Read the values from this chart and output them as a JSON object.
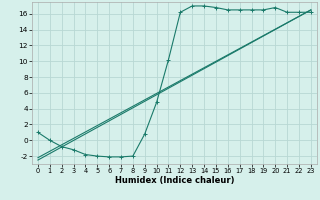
{
  "title": "",
  "xlabel": "Humidex (Indice chaleur)",
  "bg_color": "#d6f0eb",
  "line_color": "#1a7a6a",
  "grid_color": "#b8d8d4",
  "xlim": [
    -0.5,
    23.5
  ],
  "ylim": [
    -3.0,
    17.5
  ],
  "xticks": [
    0,
    1,
    2,
    3,
    4,
    5,
    6,
    7,
    8,
    9,
    10,
    11,
    12,
    13,
    14,
    15,
    16,
    17,
    18,
    19,
    20,
    21,
    22,
    23
  ],
  "yticks": [
    -2,
    0,
    2,
    4,
    6,
    8,
    10,
    12,
    14,
    16
  ],
  "line1_x": [
    0,
    1,
    2,
    3,
    4,
    5,
    6,
    7,
    8,
    9,
    10,
    11,
    12,
    13,
    14,
    15,
    16,
    17,
    18,
    19,
    20,
    21,
    22,
    23
  ],
  "line1_y": [
    1.0,
    0.0,
    -0.8,
    -1.2,
    -1.8,
    -2.0,
    -2.1,
    -2.1,
    -2.0,
    0.8,
    4.8,
    10.2,
    16.2,
    17.0,
    17.0,
    16.8,
    16.5,
    16.5,
    16.5,
    16.5,
    16.8,
    16.2,
    16.2,
    16.2
  ],
  "line2_x": [
    0,
    23
  ],
  "line2_y": [
    -2.2,
    16.5
  ],
  "line3_x": [
    0,
    23
  ],
  "line3_y": [
    -2.5,
    16.5
  ],
  "font_size_label": 6.0,
  "font_size_tick": 4.8
}
